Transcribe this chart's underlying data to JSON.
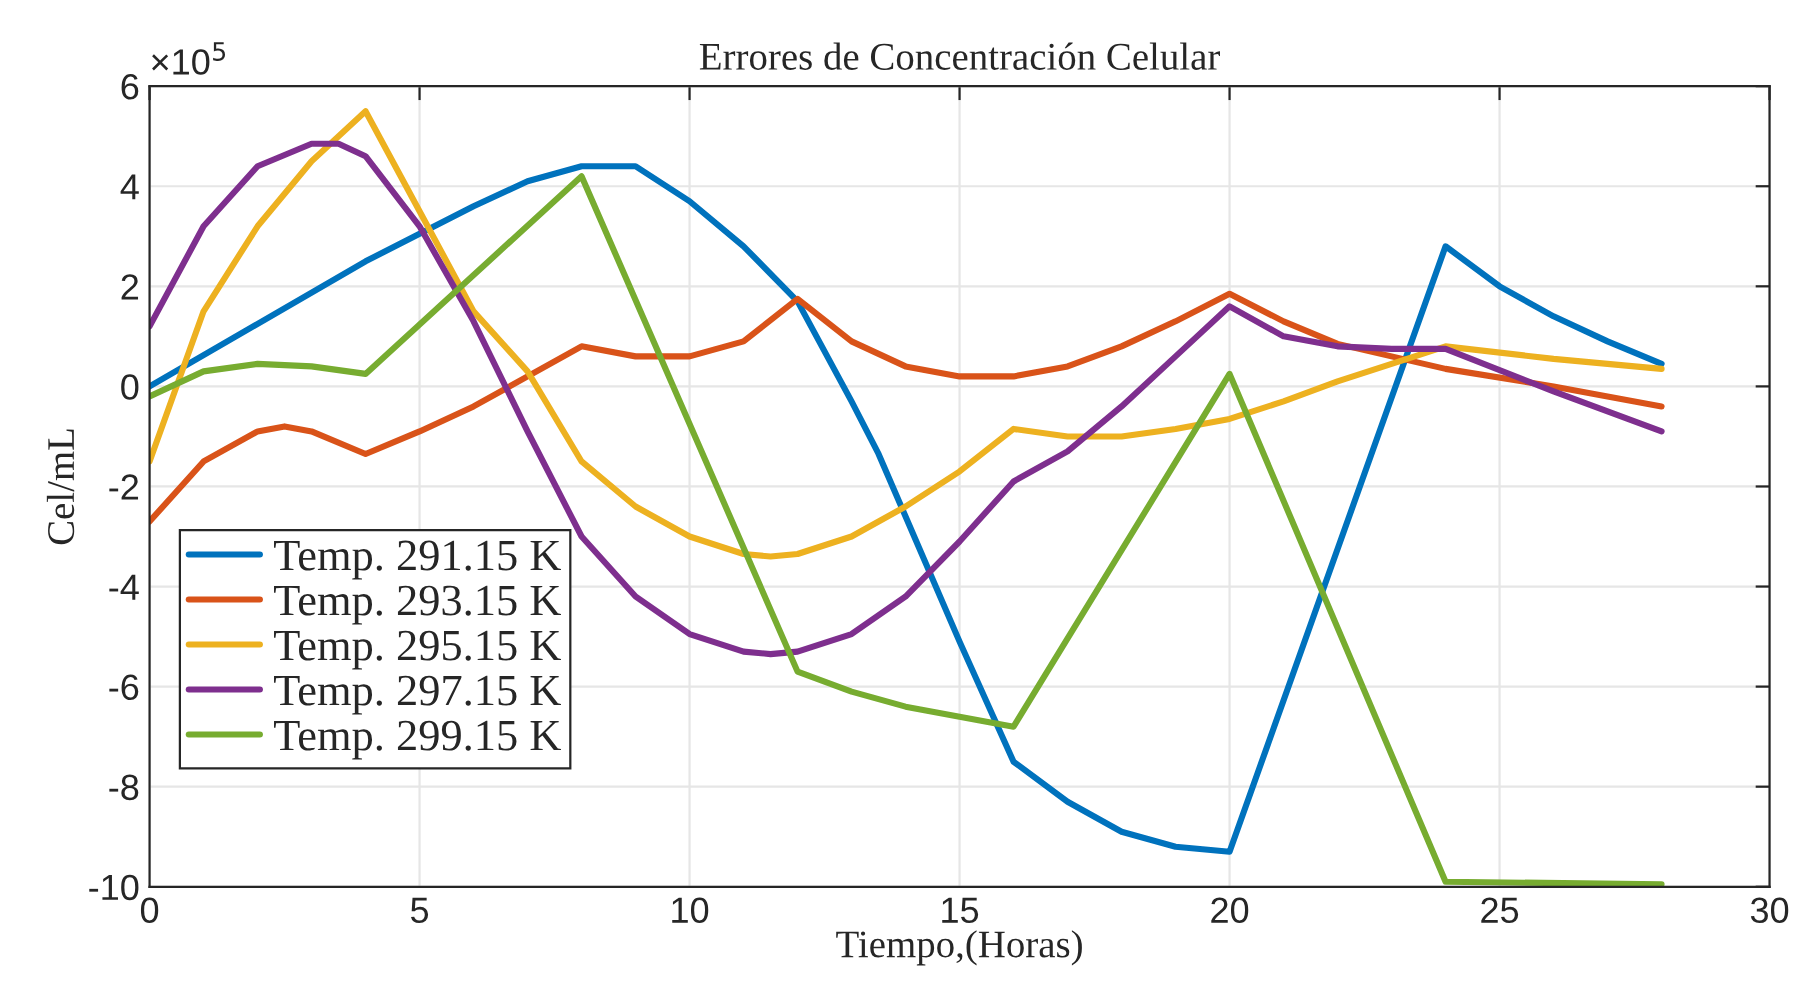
{
  "chart_data": {
    "type": "line",
    "title": "Errores de Concentración Celular",
    "xlabel": "Tiempo,(Horas)",
    "ylabel": "Cel/mL",
    "annotations": [
      "×10$^{5}$"
    ],
    "xlim": [
      0,
      30
    ],
    "xticks": [
      0,
      5,
      10,
      15,
      20,
      25,
      30
    ],
    "ylim": [
      -10,
      6
    ],
    "yticks": [
      -10,
      -8,
      -6,
      -4,
      -2,
      0,
      2,
      4,
      6
    ],
    "grid": true,
    "legend": "bottom left",
    "marker": "none",
    "line_style": "solid",
    "series": [
      {
        "name": "Temp. 291.15 K",
        "color": "#0072bd",
        "x": [
          0,
          4,
          6,
          7,
          8,
          9,
          10,
          11,
          12,
          13,
          13.5,
          14,
          15,
          16,
          17,
          18,
          19,
          20,
          24,
          25,
          26,
          27,
          28
        ],
        "values": [
          0,
          2.5,
          3.6,
          4.1,
          4.4,
          4.4,
          3.7,
          2.8,
          1.7,
          -0.3,
          -1.35,
          -2.6,
          -5.1,
          -7.5,
          -8.3,
          -8.9,
          -9.2,
          -9.3,
          2.8,
          2.0,
          1.4,
          0.9,
          0.45
        ]
      },
      {
        "name": "Temp. 293.15 K",
        "color": "#d95319",
        "x": [
          0,
          1,
          2,
          2.5,
          3,
          4,
          5,
          6,
          7,
          8,
          9,
          10,
          11,
          12,
          13,
          14,
          15,
          16,
          17,
          18,
          19,
          20,
          21,
          22,
          23,
          24,
          26,
          28
        ],
        "values": [
          -2.7,
          -1.5,
          -0.9,
          -0.8,
          -0.9,
          -1.35,
          -0.9,
          -0.4,
          0.2,
          0.8,
          0.6,
          0.6,
          0.9,
          1.75,
          0.9,
          0.4,
          0.2,
          0.2,
          0.4,
          0.8,
          1.3,
          1.85,
          1.3,
          0.85,
          0.6,
          0.35,
          0,
          -0.4
        ]
      },
      {
        "name": "Temp. 295.15 K",
        "color": "#edb120",
        "x": [
          0,
          1,
          2,
          3,
          4,
          5,
          6,
          7,
          8,
          9,
          10,
          11,
          11.5,
          12,
          13,
          14,
          15,
          16,
          17,
          18,
          19,
          20,
          21,
          22,
          23,
          24,
          26,
          28
        ],
        "values": [
          -1.5,
          1.5,
          3.2,
          4.5,
          5.5,
          3.5,
          1.5,
          0.3,
          -1.5,
          -2.4,
          -3.0,
          -3.35,
          -3.4,
          -3.35,
          -3.0,
          -2.4,
          -1.7,
          -0.85,
          -1.0,
          -1.0,
          -0.85,
          -0.65,
          -0.3,
          0.1,
          0.45,
          0.8,
          0.55,
          0.35
        ]
      },
      {
        "name": "Temp. 297.15 K",
        "color": "#7e2f8e",
        "x": [
          0,
          1,
          2,
          3,
          3.5,
          4,
          5,
          6,
          7,
          8,
          9,
          10,
          11,
          11.5,
          12,
          13,
          14,
          15,
          16,
          17,
          18,
          19,
          20,
          21,
          22,
          23,
          24,
          26,
          28
        ],
        "values": [
          1.2,
          3.2,
          4.4,
          4.85,
          4.85,
          4.6,
          3.2,
          1.3,
          -0.9,
          -3.0,
          -4.2,
          -4.95,
          -5.3,
          -5.35,
          -5.3,
          -4.95,
          -4.2,
          -3.1,
          -1.9,
          -1.3,
          -0.4,
          0.6,
          1.6,
          1.0,
          0.8,
          0.75,
          0.75,
          -0.1,
          -0.9
        ]
      },
      {
        "name": "Temp. 299.15 K",
        "color": "#77ac30",
        "x": [
          0,
          1,
          2,
          3,
          4,
          8,
          12,
          13,
          14,
          15,
          16,
          20,
          24,
          28
        ],
        "values": [
          -0.2,
          0.3,
          0.45,
          0.4,
          0.25,
          4.2,
          -5.7,
          -6.1,
          -6.4,
          -6.6,
          -6.8,
          0.25,
          -9.9,
          -9.95
        ]
      }
    ]
  }
}
